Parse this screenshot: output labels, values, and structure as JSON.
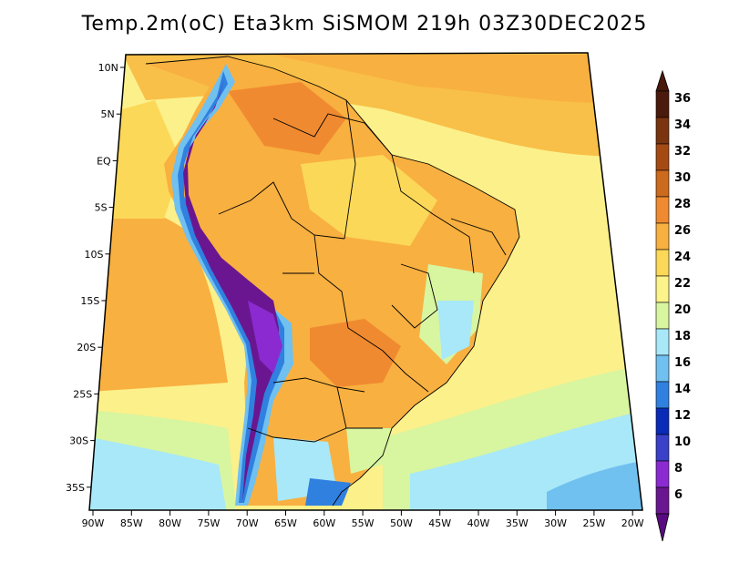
{
  "title": "Temp.2m(oC) Eta3km SiSMOM 219h 03Z30DEC2025",
  "map": {
    "lat_labels": [
      "10N",
      "5N",
      "EQ",
      "5S",
      "10S",
      "15S",
      "20S",
      "25S",
      "30S",
      "35S"
    ],
    "lon_labels": [
      "90W",
      "85W",
      "80W",
      "75W",
      "70W",
      "65W",
      "60W",
      "55W",
      "50W",
      "45W",
      "40W",
      "35W",
      "30W",
      "25W",
      "20W"
    ]
  },
  "colorbar": {
    "labels": [
      "36",
      "34",
      "32",
      "30",
      "28",
      "26",
      "24",
      "22",
      "20",
      "18",
      "16",
      "14",
      "12",
      "10",
      "8",
      "6"
    ],
    "colors": [
      "#4a1a0c",
      "#7a3410",
      "#a64a14",
      "#cc6a1e",
      "#f08a30",
      "#f8b040",
      "#fcd858",
      "#fcf38a",
      "#d8f5a0",
      "#a8e8f8",
      "#70c0f0",
      "#3080e0",
      "#0a2ab8",
      "#3a40c8",
      "#8a2ad0",
      "#6a1690"
    ],
    "top_arrow_color": "#4a1a0c",
    "bottom_arrow_color": "#5a0a80"
  }
}
